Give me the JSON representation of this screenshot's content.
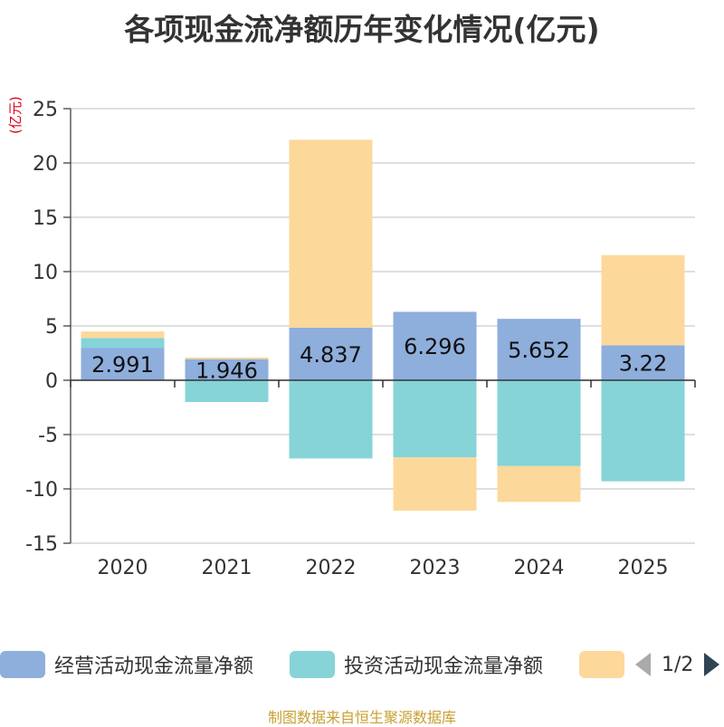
{
  "title": "各项现金流净额历年变化情况(亿元)",
  "unit_label": "(亿元)",
  "source": "制图数据来自恒生聚源数据库",
  "legend": {
    "pager_text": "1/2",
    "pager_prev_icon": "chevron-left-icon",
    "pager_next_icon": "chevron-right-icon"
  },
  "colors": {
    "operating": "#8eaedc",
    "investing": "#86d4d8",
    "financing": "#fdd89b",
    "grid": "#cccccc",
    "axis": "#333333"
  },
  "chart_data": {
    "type": "bar",
    "stacked": true,
    "categories": [
      "2020",
      "2021",
      "2022",
      "2023",
      "2024",
      "2025"
    ],
    "series": [
      {
        "name": "经营活动现金流量净额",
        "values": [
          2.991,
          1.946,
          4.837,
          6.296,
          5.652,
          3.22
        ],
        "show_labels": true
      },
      {
        "name": "投资活动现金流量净额",
        "values": [
          0.9,
          -2.0,
          -7.2,
          -7.1,
          -7.9,
          -9.3
        ],
        "show_labels": false
      },
      {
        "name": "",
        "values": [
          0.6,
          0.15,
          17.3,
          -4.9,
          -3.3,
          8.3
        ],
        "show_labels": false
      }
    ],
    "y_ticks": [
      "25",
      "20",
      "15",
      "10",
      "5",
      "0",
      "-5",
      "-10",
      "-15"
    ],
    "ylim": [
      -15,
      25
    ],
    "ylabel": "(亿元)",
    "grid": true,
    "legend_position": "bottom"
  }
}
